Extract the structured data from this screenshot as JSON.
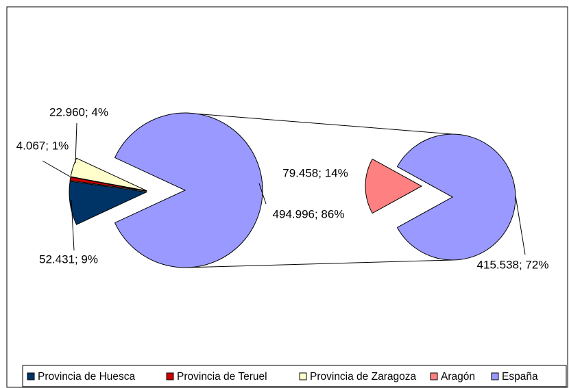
{
  "chart_data": [
    {
      "type": "pie",
      "categories": [
        "Provincia de Huesca",
        "Provincia de Teruel",
        "Provincia de Zaragoza",
        null
      ],
      "values": [
        52431,
        4067,
        22960,
        494996
      ],
      "value_labels": [
        "52.431; 9%",
        "4.067; 1%",
        "22.960; 4%",
        "494.996; 86%"
      ],
      "colors": [
        "#003366",
        "#cc0000",
        "#ffffcc",
        "#9999ff"
      ]
    },
    {
      "type": "pie",
      "categories": [
        "Aragón",
        "España"
      ],
      "values": [
        79458,
        415538
      ],
      "value_labels": [
        "79.458; 14%",
        "415.538; 72%"
      ],
      "colors": [
        "#ff8080",
        "#9999ff"
      ]
    }
  ]
}
